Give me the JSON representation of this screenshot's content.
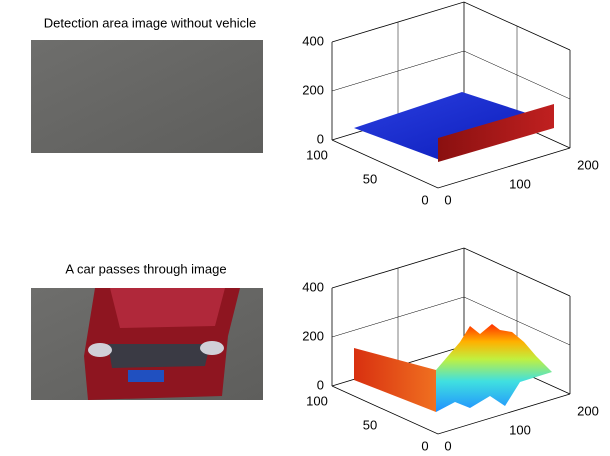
{
  "panels": [
    {
      "title": "Detection area image without vehicle",
      "z_ticks": [
        400,
        200,
        0
      ],
      "left_ticks": [
        100,
        50,
        0
      ],
      "right_ticks": [
        0,
        100,
        200
      ]
    },
    {
      "title": "A car passes through image",
      "z_ticks": [
        400,
        200,
        0
      ],
      "left_ticks": [
        100,
        50,
        0
      ],
      "right_ticks": [
        0,
        100,
        200
      ]
    }
  ]
}
